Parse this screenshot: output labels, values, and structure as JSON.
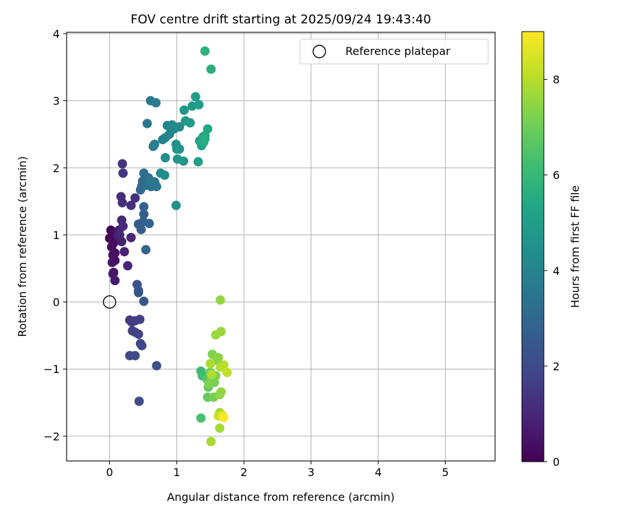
{
  "chart_data": {
    "type": "scatter",
    "title": "FOV centre drift starting at 2025/09/24 19:43:40",
    "xlabel": "Angular distance from reference (arcmin)",
    "ylabel": "Rotation from reference (arcmin)",
    "xlim": [
      -0.64,
      5.74
    ],
    "ylim": [
      -2.37,
      4.02
    ],
    "xticks": [
      0,
      1,
      2,
      3,
      4,
      5
    ],
    "yticks": [
      -2,
      -1,
      0,
      1,
      2,
      3,
      4
    ],
    "grid": true,
    "legend": {
      "position": "top-right",
      "entries": [
        {
          "label": "Reference platepar",
          "marker": "open-circle"
        }
      ]
    },
    "reference_point": {
      "x": 0,
      "y": 0
    },
    "colorbar": {
      "label": "Hours from first FF file",
      "min": 0,
      "max": 9,
      "ticks": [
        0,
        2,
        4,
        6,
        8
      ],
      "colormap": "viridis"
    },
    "points": [
      {
        "x": 0.02,
        "y": 1.07,
        "h": 0.05
      },
      {
        "x": 0.0,
        "y": 0.95,
        "h": 0.1
      },
      {
        "x": 0.05,
        "y": 0.99,
        "h": 0.15
      },
      {
        "x": 0.06,
        "y": 0.88,
        "h": 0.2
      },
      {
        "x": 0.1,
        "y": 1.03,
        "h": 0.25
      },
      {
        "x": 0.03,
        "y": 0.82,
        "h": 0.3
      },
      {
        "x": 0.05,
        "y": 0.7,
        "h": 0.35
      },
      {
        "x": 0.08,
        "y": 0.73,
        "h": 0.4
      },
      {
        "x": 0.04,
        "y": 0.59,
        "h": 0.45
      },
      {
        "x": 0.08,
        "y": 0.62,
        "h": 0.5
      },
      {
        "x": 0.06,
        "y": 0.44,
        "h": 0.55
      },
      {
        "x": 0.05,
        "y": 0.42,
        "h": 0.6
      },
      {
        "x": 0.08,
        "y": 0.32,
        "h": 0.65
      },
      {
        "x": 0.12,
        "y": 0.98,
        "h": 0.7
      },
      {
        "x": 0.14,
        "y": 1.07,
        "h": 0.75
      },
      {
        "x": 0.18,
        "y": 0.9,
        "h": 0.8
      },
      {
        "x": 0.22,
        "y": 0.75,
        "h": 0.85
      },
      {
        "x": 0.27,
        "y": 0.54,
        "h": 0.9
      },
      {
        "x": 0.32,
        "y": 0.96,
        "h": 0.95
      },
      {
        "x": 0.15,
        "y": 1.0,
        "h": 1.0
      },
      {
        "x": 0.2,
        "y": 1.13,
        "h": 1.05
      },
      {
        "x": 0.18,
        "y": 1.22,
        "h": 1.1
      },
      {
        "x": 0.17,
        "y": 1.57,
        "h": 1.15
      },
      {
        "x": 0.19,
        "y": 1.48,
        "h": 1.2
      },
      {
        "x": 0.32,
        "y": 1.44,
        "h": 1.25
      },
      {
        "x": 0.38,
        "y": 1.55,
        "h": 1.3
      },
      {
        "x": 0.19,
        "y": 2.06,
        "h": 1.35
      },
      {
        "x": 0.2,
        "y": 1.92,
        "h": 1.4
      },
      {
        "x": 0.3,
        "y": -0.27,
        "h": 1.5
      },
      {
        "x": 0.33,
        "y": -0.3,
        "h": 1.55
      },
      {
        "x": 0.38,
        "y": -0.28,
        "h": 1.6
      },
      {
        "x": 0.45,
        "y": -0.26,
        "h": 1.65
      },
      {
        "x": 0.34,
        "y": -0.43,
        "h": 1.7
      },
      {
        "x": 0.38,
        "y": -0.45,
        "h": 1.75
      },
      {
        "x": 0.43,
        "y": -0.48,
        "h": 1.8
      },
      {
        "x": 0.46,
        "y": -0.62,
        "h": 1.85
      },
      {
        "x": 0.48,
        "y": -0.65,
        "h": 1.9
      },
      {
        "x": 0.3,
        "y": -0.8,
        "h": 1.95
      },
      {
        "x": 0.38,
        "y": -0.8,
        "h": 2.0
      },
      {
        "x": 0.44,
        "y": -1.48,
        "h": 2.05
      },
      {
        "x": 0.7,
        "y": -0.95,
        "h": 2.2
      },
      {
        "x": 0.41,
        "y": 0.26,
        "h": 2.3
      },
      {
        "x": 0.43,
        "y": 0.17,
        "h": 2.35
      },
      {
        "x": 0.43,
        "y": 0.14,
        "h": 2.4
      },
      {
        "x": 0.51,
        "y": 0.01,
        "h": 2.5
      },
      {
        "x": 0.43,
        "y": 1.16,
        "h": 2.6
      },
      {
        "x": 0.47,
        "y": 1.08,
        "h": 2.65
      },
      {
        "x": 0.5,
        "y": 1.2,
        "h": 2.7
      },
      {
        "x": 0.51,
        "y": 1.31,
        "h": 2.75
      },
      {
        "x": 0.51,
        "y": 1.42,
        "h": 2.8
      },
      {
        "x": 0.59,
        "y": 1.17,
        "h": 2.9
      },
      {
        "x": 0.54,
        "y": 0.78,
        "h": 3.0
      },
      {
        "x": 0.46,
        "y": 1.67,
        "h": 3.05
      },
      {
        "x": 0.48,
        "y": 1.73,
        "h": 3.1
      },
      {
        "x": 0.49,
        "y": 1.8,
        "h": 3.15
      },
      {
        "x": 0.51,
        "y": 1.92,
        "h": 3.2
      },
      {
        "x": 0.55,
        "y": 1.74,
        "h": 3.25
      },
      {
        "x": 0.58,
        "y": 1.85,
        "h": 3.3
      },
      {
        "x": 0.62,
        "y": 1.72,
        "h": 3.35
      },
      {
        "x": 0.67,
        "y": 1.79,
        "h": 3.4
      },
      {
        "x": 0.7,
        "y": 1.72,
        "h": 3.5
      },
      {
        "x": 0.62,
        "y": 1.8,
        "h": 3.55
      },
      {
        "x": 0.56,
        "y": 2.66,
        "h": 3.6
      },
      {
        "x": 0.61,
        "y": 3.0,
        "h": 3.65
      },
      {
        "x": 0.69,
        "y": 2.97,
        "h": 3.75
      },
      {
        "x": 0.65,
        "y": 2.32,
        "h": 3.8
      },
      {
        "x": 0.67,
        "y": 2.35,
        "h": 3.85
      },
      {
        "x": 0.79,
        "y": 2.42,
        "h": 3.9
      },
      {
        "x": 0.83,
        "y": 2.45,
        "h": 3.95
      },
      {
        "x": 0.86,
        "y": 2.63,
        "h": 4.0
      },
      {
        "x": 0.89,
        "y": 2.5,
        "h": 4.05
      },
      {
        "x": 0.92,
        "y": 2.56,
        "h": 4.1
      },
      {
        "x": 0.93,
        "y": 2.64,
        "h": 4.15
      },
      {
        "x": 0.96,
        "y": 2.58,
        "h": 4.2
      },
      {
        "x": 1.04,
        "y": 2.61,
        "h": 4.25
      },
      {
        "x": 0.76,
        "y": 1.92,
        "h": 4.3
      },
      {
        "x": 0.82,
        "y": 1.89,
        "h": 4.35
      },
      {
        "x": 0.83,
        "y": 2.15,
        "h": 4.4
      },
      {
        "x": 0.99,
        "y": 1.44,
        "h": 4.45
      },
      {
        "x": 0.99,
        "y": 2.35,
        "h": 4.5
      },
      {
        "x": 1.0,
        "y": 2.28,
        "h": 4.55
      },
      {
        "x": 1.04,
        "y": 2.28,
        "h": 4.6
      },
      {
        "x": 1.01,
        "y": 2.13,
        "h": 4.65
      },
      {
        "x": 1.1,
        "y": 2.1,
        "h": 4.7
      },
      {
        "x": 1.11,
        "y": 2.86,
        "h": 4.75
      },
      {
        "x": 1.13,
        "y": 2.7,
        "h": 4.8
      },
      {
        "x": 1.2,
        "y": 2.67,
        "h": 4.85
      },
      {
        "x": 1.23,
        "y": 2.92,
        "h": 4.9
      },
      {
        "x": 1.28,
        "y": 3.06,
        "h": 4.95
      },
      {
        "x": 1.33,
        "y": 2.94,
        "h": 5.0
      },
      {
        "x": 1.32,
        "y": 2.09,
        "h": 5.05
      },
      {
        "x": 1.34,
        "y": 2.4,
        "h": 5.15
      },
      {
        "x": 1.37,
        "y": 2.33,
        "h": 5.2
      },
      {
        "x": 1.39,
        "y": 2.46,
        "h": 5.25
      },
      {
        "x": 1.42,
        "y": 2.48,
        "h": 5.3
      },
      {
        "x": 1.46,
        "y": 2.58,
        "h": 5.35
      },
      {
        "x": 1.4,
        "y": 2.38,
        "h": 5.55
      },
      {
        "x": 1.42,
        "y": 2.43,
        "h": 5.6
      },
      {
        "x": 1.51,
        "y": 3.47,
        "h": 5.65
      },
      {
        "x": 1.42,
        "y": 3.74,
        "h": 5.75
      },
      {
        "x": 1.36,
        "y": -1.03,
        "h": 6.1
      },
      {
        "x": 1.38,
        "y": -1.1,
        "h": 6.2
      },
      {
        "x": 1.36,
        "y": -1.73,
        "h": 6.4
      },
      {
        "x": 1.45,
        "y": -1.15,
        "h": 6.6
      },
      {
        "x": 1.47,
        "y": -1.27,
        "h": 6.75
      },
      {
        "x": 1.46,
        "y": -1.42,
        "h": 6.85
      },
      {
        "x": 1.5,
        "y": -1.05,
        "h": 6.95
      },
      {
        "x": 1.52,
        "y": -1.15,
        "h": 7.05
      },
      {
        "x": 1.55,
        "y": -1.42,
        "h": 7.1
      },
      {
        "x": 1.56,
        "y": -1.2,
        "h": 7.15
      },
      {
        "x": 1.58,
        "y": -1.1,
        "h": 7.2
      },
      {
        "x": 1.48,
        "y": -1.22,
        "h": 7.25
      },
      {
        "x": 1.53,
        "y": -0.78,
        "h": 7.3
      },
      {
        "x": 1.6,
        "y": -0.87,
        "h": 7.35
      },
      {
        "x": 1.62,
        "y": -0.83,
        "h": 7.4
      },
      {
        "x": 1.64,
        "y": -1.38,
        "h": 7.45
      },
      {
        "x": 1.66,
        "y": -1.34,
        "h": 7.5
      },
      {
        "x": 1.65,
        "y": 0.03,
        "h": 7.55
      },
      {
        "x": 1.66,
        "y": -0.44,
        "h": 7.6
      },
      {
        "x": 1.58,
        "y": -0.49,
        "h": 7.65
      },
      {
        "x": 1.64,
        "y": -1.65,
        "h": 7.7
      },
      {
        "x": 1.64,
        "y": -1.88,
        "h": 7.75
      },
      {
        "x": 1.51,
        "y": -2.08,
        "h": 7.8
      },
      {
        "x": 1.5,
        "y": -0.92,
        "h": 7.85
      },
      {
        "x": 1.52,
        "y": -1.08,
        "h": 7.9
      },
      {
        "x": 1.65,
        "y": -0.97,
        "h": 7.95
      },
      {
        "x": 1.7,
        "y": -0.94,
        "h": 8.05
      },
      {
        "x": 1.75,
        "y": -1.05,
        "h": 8.15
      },
      {
        "x": 1.62,
        "y": -1.7,
        "h": 8.3
      },
      {
        "x": 1.68,
        "y": -1.69,
        "h": 8.6
      },
      {
        "x": 1.7,
        "y": -1.72,
        "h": 9.0
      }
    ]
  }
}
